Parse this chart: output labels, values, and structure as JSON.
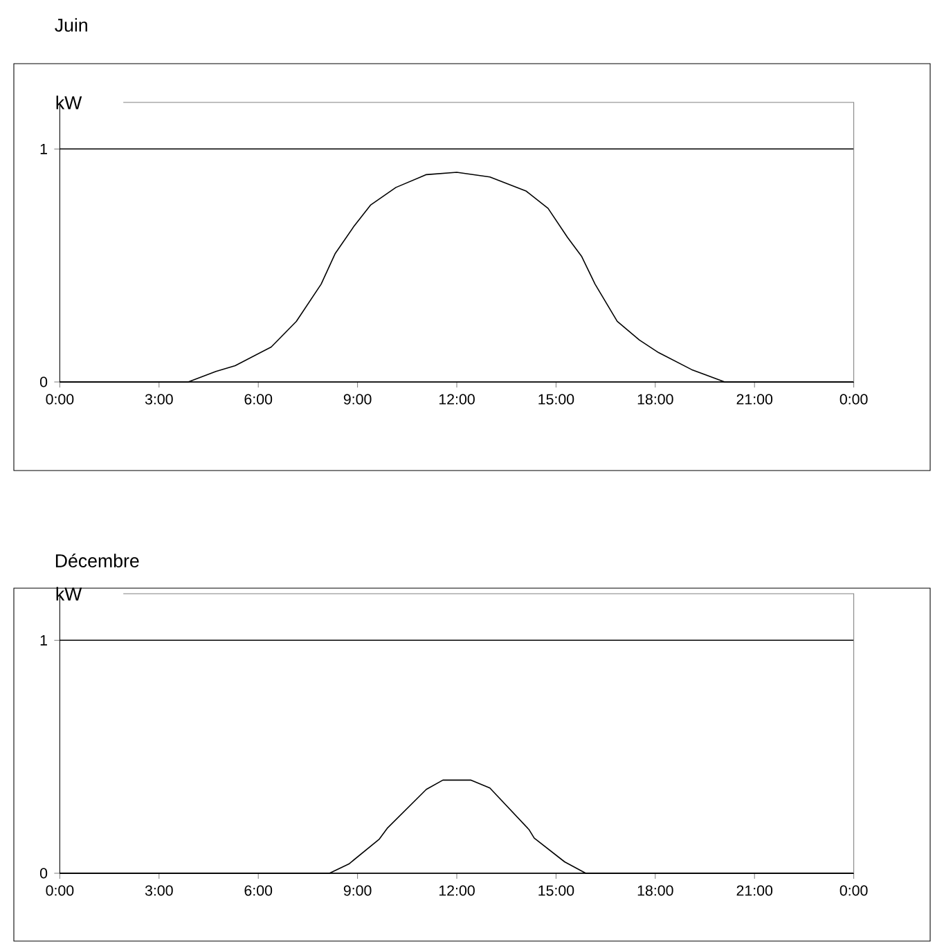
{
  "chart_data": [
    {
      "type": "line",
      "title": "Juin",
      "ylabel": "kW",
      "xlim": [
        0,
        24
      ],
      "ylim": [
        0,
        1.2
      ],
      "grid": "y",
      "xticks": [
        {
          "value": 0,
          "label": "0:00"
        },
        {
          "value": 3,
          "label": "3:00"
        },
        {
          "value": 6,
          "label": "6:00"
        },
        {
          "value": 9,
          "label": "9:00"
        },
        {
          "value": 12,
          "label": "12:00"
        },
        {
          "value": 15,
          "label": "15:00"
        },
        {
          "value": 18,
          "label": "18:00"
        },
        {
          "value": 21,
          "label": "21:00"
        },
        {
          "value": 24,
          "label": "0:00"
        }
      ],
      "yticks": [
        0,
        1
      ],
      "series": [
        {
          "color": "#000000",
          "x": [
            0,
            3.88,
            4.72,
            5.3,
            6.39,
            7.15,
            7.9,
            8.32,
            8.9,
            9.4,
            10.16,
            11.08,
            12.0,
            13.0,
            14.09,
            14.76,
            15.35,
            15.77,
            16.18,
            16.85,
            17.52,
            18.1,
            19.1,
            20.1,
            24
          ],
          "values": [
            0,
            0,
            0.045,
            0.07,
            0.15,
            0.26,
            0.42,
            0.55,
            0.67,
            0.76,
            0.835,
            0.89,
            0.9,
            0.88,
            0.82,
            0.745,
            0.62,
            0.54,
            0.42,
            0.26,
            0.18,
            0.126,
            0.053,
            0,
            0
          ]
        }
      ]
    },
    {
      "type": "line",
      "title": "Décembre",
      "ylabel": "kW",
      "xlim": [
        0,
        24
      ],
      "ylim": [
        0,
        1.2
      ],
      "grid": "y",
      "xticks": [
        {
          "value": 0,
          "label": "0:00"
        },
        {
          "value": 3,
          "label": "3:00"
        },
        {
          "value": 6,
          "label": "6:00"
        },
        {
          "value": 9,
          "label": "9:00"
        },
        {
          "value": 12,
          "label": "12:00"
        },
        {
          "value": 15,
          "label": "15:00"
        },
        {
          "value": 18,
          "label": "18:00"
        },
        {
          "value": 21,
          "label": "21:00"
        },
        {
          "value": 24,
          "label": "0:00"
        }
      ],
      "yticks": [
        0,
        1
      ],
      "series": [
        {
          "color": "#000000",
          "x": [
            0,
            8.15,
            8.74,
            9.66,
            9.91,
            11.08,
            11.58,
            12.42,
            13.0,
            14.18,
            14.34,
            15.26,
            15.9,
            24
          ],
          "values": [
            0,
            0,
            0.04,
            0.147,
            0.195,
            0.36,
            0.4,
            0.4,
            0.366,
            0.188,
            0.151,
            0.049,
            0,
            0
          ]
        }
      ]
    }
  ]
}
